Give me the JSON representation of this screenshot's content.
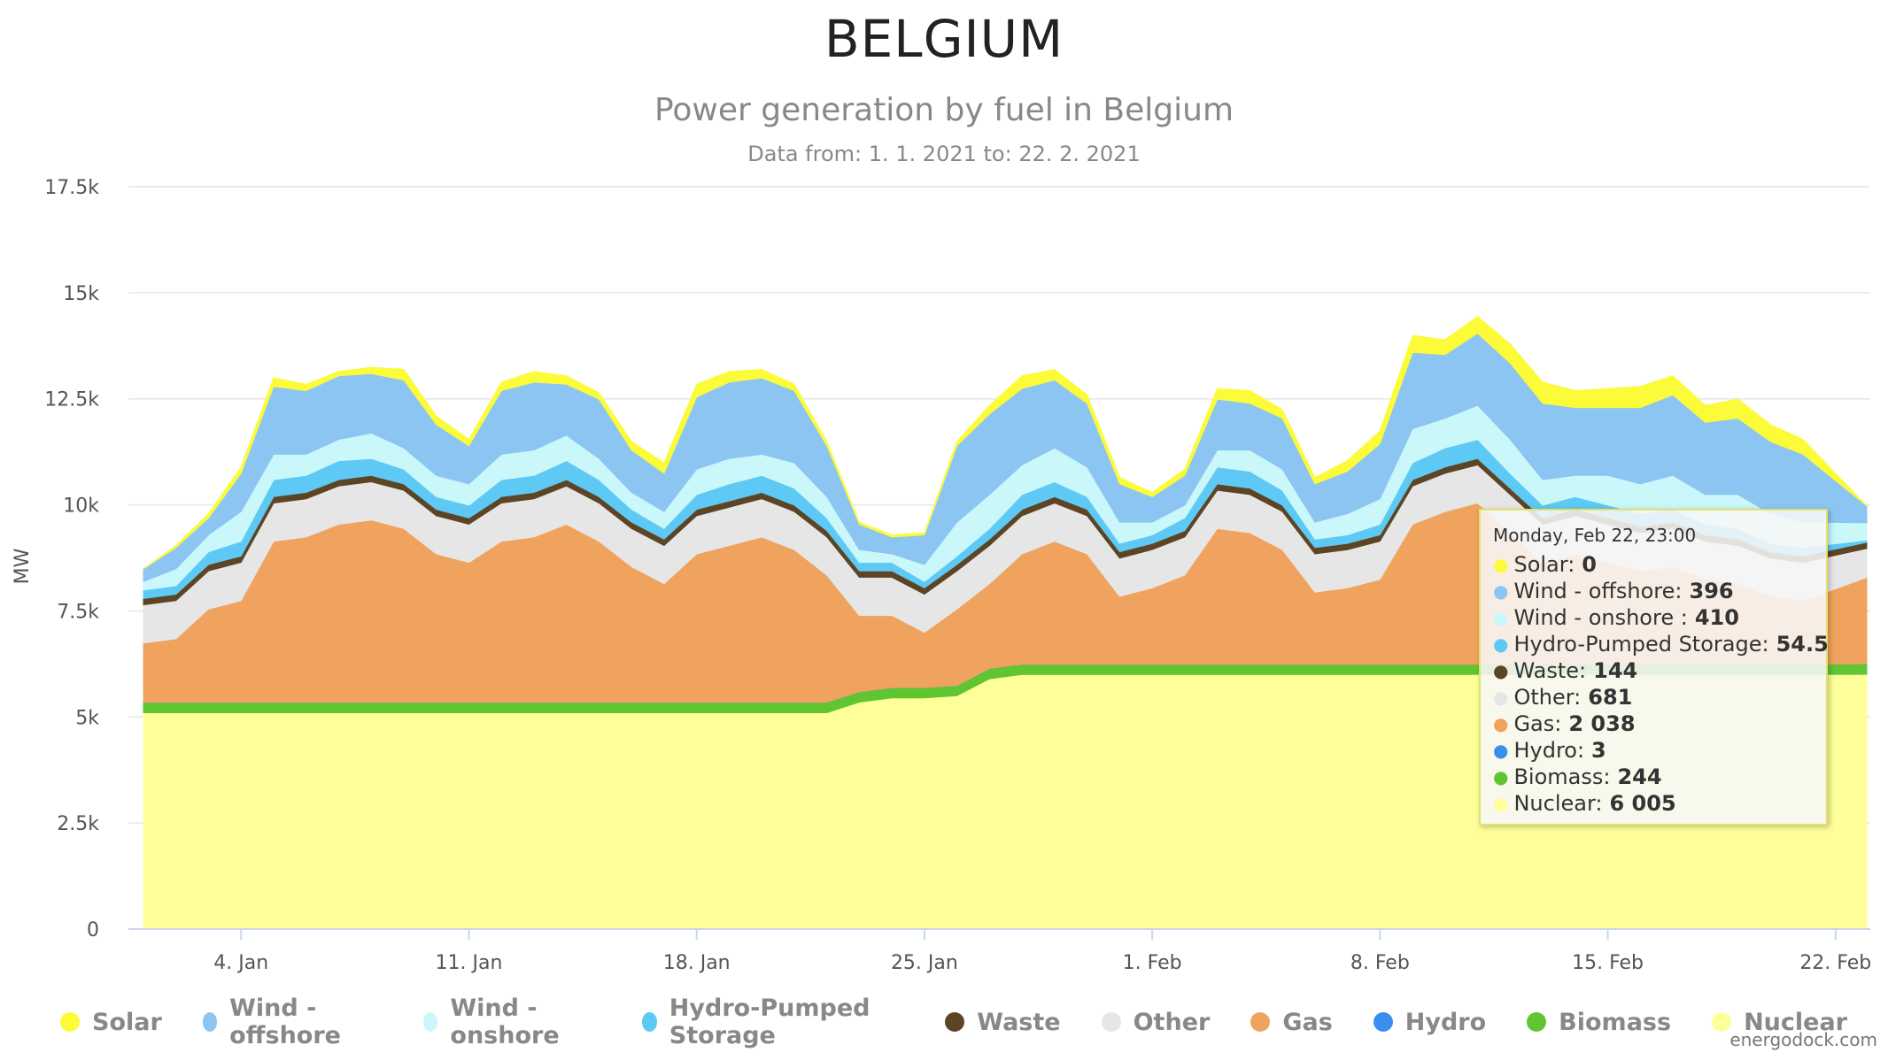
{
  "page": {
    "title": "BELGIUM",
    "credit": "energodock.com"
  },
  "chart_data": {
    "type": "area",
    "stacking": "normal",
    "title": "Power generation by fuel in Belgium",
    "subtitle": "Data from: 1. 1. 2021 to: 22. 2. 2021",
    "ylabel": "MW",
    "ylim": [
      0,
      17500
    ],
    "yticks": [
      0,
      2500,
      5000,
      7500,
      10000,
      12500,
      15000,
      17500
    ],
    "ytick_labels": [
      "0",
      "2.5k",
      "5k",
      "7.5k",
      "10k",
      "12.5k",
      "15k",
      "17.5k"
    ],
    "xlim": [
      "2021-01-01",
      "2021-02-22T23:00"
    ],
    "xticks": [
      "2021-01-04",
      "2021-01-11",
      "2021-01-18",
      "2021-01-25",
      "2021-02-01",
      "2021-02-08",
      "2021-02-15",
      "2021-02-22"
    ],
    "xtick_labels": [
      "4. Jan",
      "11. Jan",
      "18. Jan",
      "25. Jan",
      "1. Feb",
      "8. Feb",
      "15. Feb",
      "22. Feb"
    ],
    "grid": "y",
    "legend_position": "bottom",
    "x": [
      "2021-01-01",
      "2021-01-02",
      "2021-01-03",
      "2021-01-04",
      "2021-01-05",
      "2021-01-06",
      "2021-01-07",
      "2021-01-08",
      "2021-01-09",
      "2021-01-10",
      "2021-01-11",
      "2021-01-12",
      "2021-01-13",
      "2021-01-14",
      "2021-01-15",
      "2021-01-16",
      "2021-01-17",
      "2021-01-18",
      "2021-01-19",
      "2021-01-20",
      "2021-01-21",
      "2021-01-22",
      "2021-01-23",
      "2021-01-24",
      "2021-01-25",
      "2021-01-26",
      "2021-01-27",
      "2021-01-28",
      "2021-01-29",
      "2021-01-30",
      "2021-01-31",
      "2021-02-01",
      "2021-02-02",
      "2021-02-03",
      "2021-02-04",
      "2021-02-05",
      "2021-02-06",
      "2021-02-07",
      "2021-02-08",
      "2021-02-09",
      "2021-02-10",
      "2021-02-11",
      "2021-02-12",
      "2021-02-13",
      "2021-02-14",
      "2021-02-15",
      "2021-02-16",
      "2021-02-17",
      "2021-02-18",
      "2021-02-19",
      "2021-02-20",
      "2021-02-21",
      "2021-02-22"
    ],
    "series": [
      {
        "name": "Nuclear",
        "color": "#ffff99",
        "values": [
          5100,
          5100,
          5100,
          5100,
          5100,
          5100,
          5100,
          5100,
          5100,
          5100,
          5100,
          5100,
          5100,
          5100,
          5100,
          5100,
          5100,
          5100,
          5100,
          5100,
          5100,
          5100,
          5350,
          5450,
          5450,
          5500,
          5900,
          6000,
          6000,
          6000,
          6000,
          6000,
          6000,
          6000,
          6000,
          6000,
          6000,
          6000,
          6000,
          6000,
          6000,
          6000,
          6000,
          6000,
          6000,
          6000,
          6000,
          6000,
          6000,
          6000,
          6000,
          6000,
          6005
        ]
      },
      {
        "name": "Biomass",
        "color": "#5fc631",
        "values": [
          240,
          240,
          240,
          240,
          240,
          240,
          240,
          240,
          240,
          240,
          240,
          240,
          240,
          240,
          240,
          240,
          240,
          240,
          240,
          240,
          240,
          240,
          240,
          240,
          240,
          240,
          240,
          240,
          240,
          240,
          240,
          240,
          240,
          240,
          240,
          240,
          240,
          240,
          240,
          240,
          240,
          240,
          240,
          240,
          240,
          240,
          240,
          240,
          240,
          240,
          240,
          240,
          244
        ]
      },
      {
        "name": "Hydro",
        "color": "#3a8eed",
        "values": [
          3,
          3,
          3,
          3,
          3,
          3,
          3,
          3,
          3,
          3,
          3,
          3,
          3,
          3,
          3,
          3,
          3,
          3,
          3,
          3,
          3,
          3,
          3,
          3,
          3,
          3,
          3,
          3,
          3,
          3,
          3,
          3,
          3,
          3,
          3,
          3,
          3,
          3,
          3,
          3,
          3,
          3,
          3,
          3,
          3,
          3,
          3,
          3,
          3,
          3,
          3,
          3,
          3
        ]
      },
      {
        "name": "Gas",
        "color": "#f0a35e",
        "values": [
          1400,
          1500,
          2200,
          2400,
          3800,
          3900,
          4200,
          4300,
          4100,
          3500,
          3300,
          3800,
          3900,
          4200,
          3800,
          3200,
          2800,
          3500,
          3700,
          3900,
          3600,
          3000,
          1800,
          1700,
          1300,
          1800,
          2000,
          2600,
          2900,
          2600,
          1600,
          1800,
          2100,
          3200,
          3100,
          2700,
          1700,
          1800,
          2000,
          3300,
          3600,
          3800,
          3100,
          2400,
          2600,
          2400,
          2200,
          2300,
          2000,
          1900,
          1600,
          1500,
          2038
        ]
      },
      {
        "name": "Other",
        "color": "#e6e6e6",
        "values": [
          900,
          900,
          900,
          900,
          900,
          900,
          900,
          900,
          900,
          900,
          900,
          900,
          900,
          900,
          900,
          900,
          900,
          900,
          900,
          900,
          900,
          900,
          900,
          900,
          900,
          900,
          900,
          900,
          900,
          900,
          900,
          900,
          900,
          900,
          900,
          900,
          900,
          900,
          900,
          900,
          900,
          900,
          900,
          900,
          900,
          900,
          900,
          900,
          900,
          900,
          900,
          900,
          681
        ]
      },
      {
        "name": "Waste",
        "color": "#5c4425",
        "values": [
          150,
          150,
          150,
          150,
          150,
          150,
          150,
          150,
          150,
          150,
          150,
          150,
          150,
          150,
          150,
          150,
          150,
          150,
          150,
          150,
          150,
          150,
          150,
          150,
          150,
          150,
          150,
          150,
          150,
          150,
          150,
          150,
          150,
          150,
          150,
          150,
          150,
          150,
          150,
          150,
          150,
          150,
          150,
          150,
          150,
          150,
          150,
          150,
          150,
          150,
          150,
          150,
          144
        ]
      },
      {
        "name": "Hydro-Pumped Storage",
        "color": "#5ec9f5",
        "values": [
          200,
          200,
          300,
          350,
          400,
          400,
          450,
          400,
          350,
          300,
          300,
          400,
          400,
          450,
          400,
          300,
          250,
          350,
          400,
          400,
          400,
          300,
          200,
          200,
          150,
          200,
          250,
          350,
          350,
          300,
          200,
          200,
          300,
          400,
          400,
          350,
          200,
          200,
          250,
          400,
          450,
          450,
          350,
          300,
          300,
          300,
          300,
          300,
          250,
          250,
          200,
          200,
          54.5
        ]
      },
      {
        "name": "Wind - onshore",
        "color": "#c9f7fa",
        "values": [
          200,
          400,
          400,
          700,
          600,
          500,
          500,
          600,
          500,
          500,
          500,
          600,
          600,
          600,
          500,
          400,
          400,
          600,
          600,
          500,
          600,
          500,
          300,
          200,
          400,
          800,
          800,
          700,
          800,
          700,
          500,
          300,
          300,
          400,
          500,
          500,
          400,
          500,
          600,
          800,
          700,
          800,
          800,
          600,
          500,
          700,
          700,
          800,
          700,
          800,
          700,
          600,
          410
        ]
      },
      {
        "name": "Wind - offshore",
        "color": "#8cc5f2",
        "values": [
          300,
          500,
          400,
          900,
          1600,
          1500,
          1500,
          1400,
          1600,
          1200,
          900,
          1500,
          1600,
          1200,
          1400,
          1000,
          900,
          1700,
          1800,
          1800,
          1700,
          1200,
          600,
          400,
          700,
          1800,
          1900,
          1800,
          1600,
          1500,
          900,
          600,
          700,
          1200,
          1100,
          1200,
          900,
          1000,
          1300,
          1800,
          1500,
          1700,
          1800,
          1800,
          1600,
          1600,
          1800,
          1900,
          1700,
          1800,
          1700,
          1600,
          396
        ]
      },
      {
        "name": "Solar",
        "color": "#fbfb3a",
        "values": [
          0,
          50,
          100,
          150,
          200,
          150,
          100,
          150,
          250,
          200,
          150,
          200,
          250,
          200,
          150,
          200,
          250,
          300,
          250,
          200,
          150,
          100,
          50,
          50,
          50,
          100,
          200,
          300,
          250,
          200,
          150,
          100,
          150,
          250,
          300,
          200,
          150,
          250,
          300,
          400,
          350,
          400,
          450,
          500,
          400,
          450,
          500,
          450,
          400,
          450,
          400,
          350,
          0
        ]
      }
    ]
  },
  "tooltip": {
    "header": "Monday, Feb 22, 23:00",
    "rows": [
      {
        "label": "Solar: ",
        "value": "0",
        "color": "#fbfb3a"
      },
      {
        "label": "Wind - offshore: ",
        "value": "396",
        "color": "#8cc5f2"
      },
      {
        "label": "Wind - onshore : ",
        "value": "410",
        "color": "#c9f7fa"
      },
      {
        "label": "Hydro-Pumped Storage: ",
        "value": "54.5",
        "color": "#5ec9f5"
      },
      {
        "label": "Waste: ",
        "value": "144",
        "color": "#5c4425"
      },
      {
        "label": "Other: ",
        "value": "681",
        "color": "#e6e6e6"
      },
      {
        "label": "Gas: ",
        "value": "2 038",
        "color": "#f0a35e"
      },
      {
        "label": "Hydro: ",
        "value": "3",
        "color": "#3a8eed"
      },
      {
        "label": "Biomass: ",
        "value": "244",
        "color": "#5fc631"
      },
      {
        "label": "Nuclear: ",
        "value": "6 005",
        "color": "#ffff99"
      }
    ]
  },
  "legend": [
    {
      "label": "Solar",
      "color": "#fbfb3a"
    },
    {
      "label": "Wind - offshore",
      "color": "#8cc5f2"
    },
    {
      "label": "Wind - onshore",
      "color": "#c9f7fa"
    },
    {
      "label": "Hydro-Pumped Storage",
      "color": "#5ec9f5"
    },
    {
      "label": "Waste",
      "color": "#5c4425"
    },
    {
      "label": "Other",
      "color": "#e6e6e6"
    },
    {
      "label": "Gas",
      "color": "#f0a35e"
    },
    {
      "label": "Hydro",
      "color": "#3a8eed"
    },
    {
      "label": "Biomass",
      "color": "#5fc631"
    },
    {
      "label": "Nuclear",
      "color": "#ffff99"
    }
  ]
}
